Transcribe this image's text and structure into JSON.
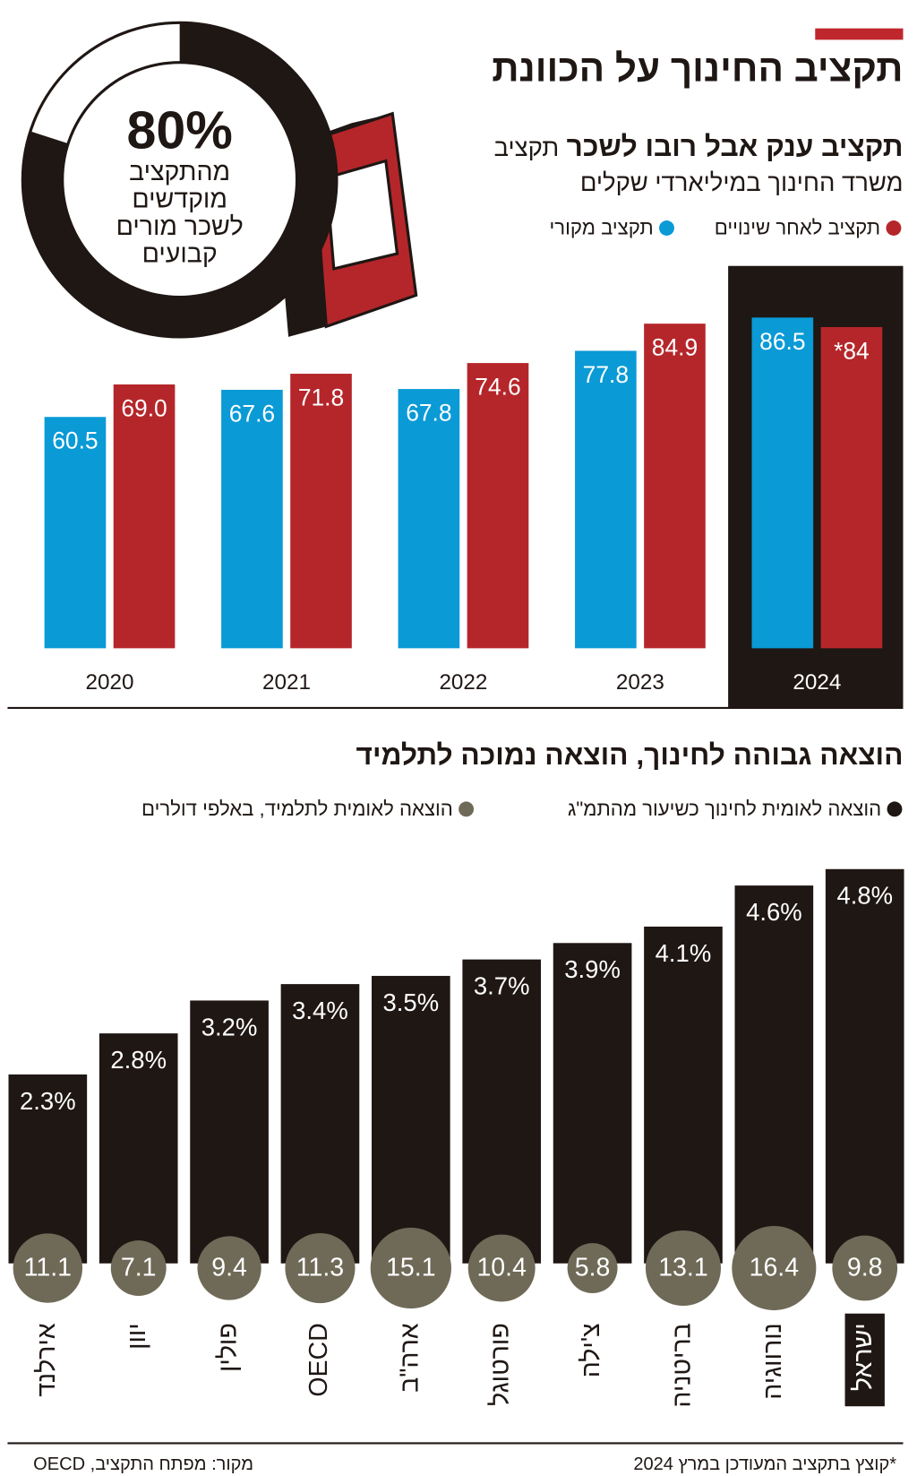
{
  "header": {
    "title": "תקציב החינוך על הכוונת"
  },
  "chart_data": [
    {
      "type": "donut",
      "values": [
        80
      ],
      "value_labels": [
        "80%"
      ],
      "caption": [
        "מהתקציב",
        "מוקדשים",
        "לשכר מורים",
        "קבועים"
      ],
      "color": "#1f1714"
    },
    {
      "type": "grouped-bar",
      "title": "תקציב ענק אבל רובו לשכר",
      "subtitle": [
        "תקציב",
        "משרד החינוך במיליארדי שקלים"
      ],
      "categories": [
        "2020",
        "2021",
        "2022",
        "2023",
        "2024"
      ],
      "series": [
        {
          "name": "תקציב מקורי",
          "color": "#0a9ad6",
          "values": [
            60.5,
            67.6,
            67.8,
            77.8,
            86.5
          ]
        },
        {
          "name": "תקציב לאחר שינויים",
          "color": "#b5262a",
          "values": [
            69,
            71.8,
            74.6,
            84.9,
            84
          ],
          "value_labels": [
            "69.0",
            "71.8",
            "74.6",
            "84.9",
            "*84"
          ]
        }
      ],
      "ylim": [
        0,
        100
      ],
      "highlight_index": 4
    },
    {
      "type": "bar-bubble",
      "title": "הוצאה גבוהה לחינוך, הוצאה נמוכה לתלמיד",
      "categories": [
        "ישראל",
        "נורווגיה",
        "בריטניה",
        "צ'ילה",
        "פורטוגל",
        "ארה\"ב",
        "OECD",
        "פולין",
        "יוון",
        "אירלנד"
      ],
      "series": [
        {
          "name": "הוצאה לאומית לחינוך כשיעור מהתמ\"ג",
          "color": "#1f1714",
          "values": [
            4.8,
            4.6,
            4.1,
            3.9,
            3.7,
            3.5,
            3.4,
            3.2,
            2.8,
            2.3
          ],
          "value_labels": [
            "4.8%",
            "4.6%",
            "4.1%",
            "3.9%",
            "3.7%",
            "3.5%",
            "3.4%",
            "3.2%",
            "2.8%",
            "2.3%"
          ]
        },
        {
          "name": "הוצאה לאומית לתלמיד, באלפי דולרים",
          "color": "#6f6a57",
          "values": [
            9.8,
            16.4,
            13.1,
            5.8,
            10.4,
            15.1,
            11.3,
            9.4,
            7.1,
            11.1
          ]
        }
      ],
      "ylim": [
        0,
        5
      ],
      "highlight_index": 0
    }
  ],
  "footer": {
    "note": "*קוצץ בתקציב המעודכן במרץ 2024",
    "source": "מקור: מפתח התקציב, OECD"
  }
}
